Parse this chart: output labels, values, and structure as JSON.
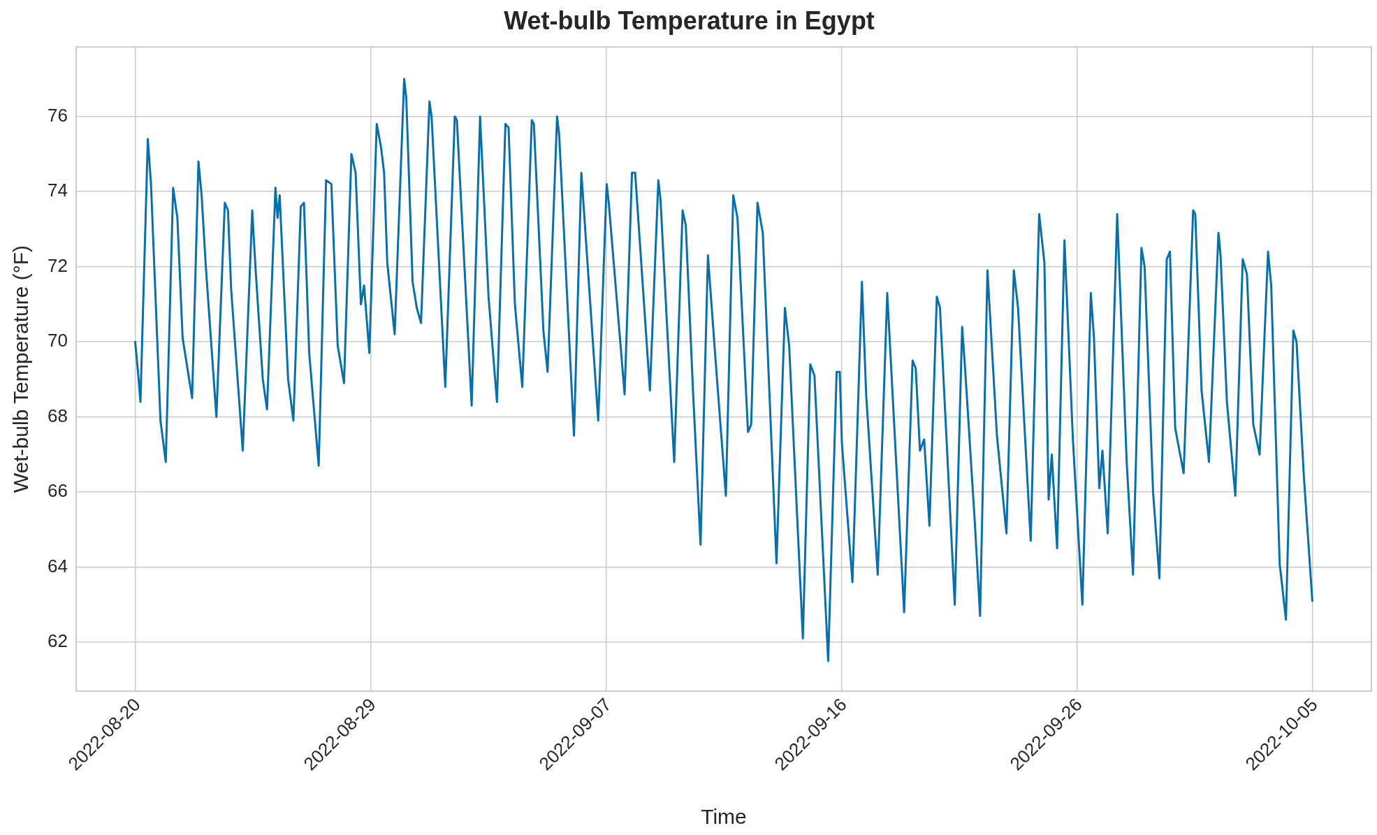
{
  "chart_data": {
    "type": "line",
    "title": "Wet-bulb Temperature in Egypt",
    "xlabel": "Time",
    "ylabel": "Wet-bulb Temperature (°F)",
    "color": "#0a6fa8",
    "grid": true,
    "marker": "none",
    "line_style": "solid",
    "xlim": [
      "2022-08-17T16:00",
      "2022-10-07T20:00"
    ],
    "xticks": [
      {
        "value": "2022-08-20T00:00",
        "label": "2022-08-20"
      },
      {
        "value": "2022-08-29T07:12",
        "label": "2022-08-29"
      },
      {
        "value": "2022-09-07T14:24",
        "label": "2022-09-07"
      },
      {
        "value": "2022-09-16T21:36",
        "label": "2022-09-16"
      },
      {
        "value": "2022-09-26T04:48",
        "label": "2022-09-26"
      },
      {
        "value": "2022-10-05T12:00",
        "label": "2022-10-05"
      }
    ],
    "ylim": [
      60.7,
      77.85
    ],
    "yticks": [
      62,
      64,
      66,
      68,
      70,
      72,
      74,
      76
    ],
    "x": [
      "2022-08-20T00:00",
      "2022-08-20T03:00",
      "2022-08-20T05:00",
      "2022-08-20T08:00",
      "2022-08-20T12:00",
      "2022-08-20T15:00",
      "2022-08-21T00:00",
      "2022-08-21T05:00",
      "2022-08-21T12:00",
      "2022-08-21T16:00",
      "2022-08-21T21:00",
      "2022-08-22T06:00",
      "2022-08-22T12:00",
      "2022-08-22T15:00",
      "2022-08-22T19:00",
      "2022-08-23T05:00",
      "2022-08-23T13:00",
      "2022-08-23T16:00",
      "2022-08-23T19:00",
      "2022-08-24T06:00",
      "2022-08-24T15:00",
      "2022-08-24T18:00",
      "2022-08-25T01:00",
      "2022-08-25T05:00",
      "2022-08-25T13:00",
      "2022-08-25T15:00",
      "2022-08-25T17:00",
      "2022-08-26T01:00",
      "2022-08-26T06:00",
      "2022-08-26T13:00",
      "2022-08-26T16:00",
      "2022-08-26T21:00",
      "2022-08-27T06:00",
      "2022-08-27T13:00",
      "2022-08-27T18:00",
      "2022-08-28T00:00",
      "2022-08-28T06:00",
      "2022-08-28T13:00",
      "2022-08-28T17:00",
      "2022-08-28T22:00",
      "2022-08-29T01:00",
      "2022-08-29T06:00",
      "2022-08-29T13:00",
      "2022-08-29T17:00",
      "2022-08-29T20:00",
      "2022-08-29T23:00",
      "2022-08-30T06:00",
      "2022-08-30T15:00",
      "2022-08-30T17:00",
      "2022-08-30T23:00",
      "2022-08-31T03:00",
      "2022-08-31T07:00",
      "2022-08-31T15:00",
      "2022-08-31T17:00",
      "2022-09-01T06:00",
      "2022-09-01T15:00",
      "2022-09-01T17:00",
      "2022-09-02T07:00",
      "2022-09-02T15:00",
      "2022-09-02T23:00",
      "2022-09-03T07:00",
      "2022-09-03T15:00",
      "2022-09-03T18:00",
      "2022-09-04T00:00",
      "2022-09-04T07:00",
      "2022-09-04T16:00",
      "2022-09-04T18:00",
      "2022-09-05T03:00",
      "2022-09-05T07:00",
      "2022-09-05T16:00",
      "2022-09-05T18:00",
      "2022-09-06T08:00",
      "2022-09-06T15:00",
      "2022-09-07T07:00",
      "2022-09-07T15:00",
      "2022-09-07T17:00",
      "2022-09-08T08:00",
      "2022-09-08T15:00",
      "2022-09-08T18:00",
      "2022-09-09T08:00",
      "2022-09-09T16:00",
      "2022-09-09T18:00",
      "2022-09-10T07:00",
      "2022-09-10T15:00",
      "2022-09-10T18:00",
      "2022-09-11T01:00",
      "2022-09-11T08:00",
      "2022-09-11T15:00",
      "2022-09-11T22:00",
      "2022-09-12T08:00",
      "2022-09-12T15:00",
      "2022-09-12T19:00",
      "2022-09-13T05:00",
      "2022-09-13T08:00",
      "2022-09-13T14:00",
      "2022-09-13T19:00",
      "2022-09-14T08:00",
      "2022-09-14T16:00",
      "2022-09-14T20:00",
      "2022-09-15T09:00",
      "2022-09-15T16:00",
      "2022-09-15T20:00",
      "2022-09-16T09:00",
      "2022-09-16T17:00",
      "2022-09-16T20:00",
      "2022-09-16T22:00",
      "2022-09-17T08:00",
      "2022-09-17T17:00",
      "2022-09-17T21:00",
      "2022-09-18T08:00",
      "2022-09-18T17:00",
      "2022-09-18T23:00",
      "2022-09-19T09:00",
      "2022-09-19T17:00",
      "2022-09-19T20:00",
      "2022-09-20T00:00",
      "2022-09-20T04:00",
      "2022-09-20T09:00",
      "2022-09-20T16:00",
      "2022-09-20T19:00",
      "2022-09-21T09:00",
      "2022-09-21T16:00",
      "2022-09-21T19:00",
      "2022-09-22T04:00",
      "2022-09-22T09:00",
      "2022-09-22T16:00",
      "2022-09-23T01:00",
      "2022-09-23T10:00",
      "2022-09-23T17:00",
      "2022-09-23T21:00",
      "2022-09-24T09:00",
      "2022-09-24T17:00",
      "2022-09-24T22:00",
      "2022-09-25T02:00",
      "2022-09-25T05:00",
      "2022-09-25T10:00",
      "2022-09-25T17:00",
      "2022-09-26T01:00",
      "2022-09-26T10:00",
      "2022-09-26T18:00",
      "2022-09-26T21:00",
      "2022-09-27T02:00",
      "2022-09-27T05:00",
      "2022-09-27T10:00",
      "2022-09-27T19:00",
      "2022-09-28T04:00",
      "2022-09-28T10:00",
      "2022-09-28T18:00",
      "2022-09-28T21:00",
      "2022-09-29T05:00",
      "2022-09-29T11:00",
      "2022-09-29T18:00",
      "2022-09-29T21:00",
      "2022-09-30T02:00",
      "2022-09-30T10:00",
      "2022-09-30T19:00",
      "2022-09-30T21:00",
      "2022-10-01T03:00",
      "2022-10-01T10:00",
      "2022-10-01T19:00",
      "2022-10-01T21:00",
      "2022-10-02T03:00",
      "2022-10-02T11:00",
      "2022-10-02T18:00",
      "2022-10-02T22:00",
      "2022-10-03T04:00",
      "2022-10-03T10:00",
      "2022-10-03T18:00",
      "2022-10-03T21:00",
      "2022-10-04T05:00",
      "2022-10-04T11:00",
      "2022-10-04T18:00",
      "2022-10-04T21:00",
      "2022-10-05T04:00",
      "2022-10-05T12:00"
    ],
    "values": [
      70.0,
      69.1,
      68.4,
      71.4,
      75.4,
      74.2,
      67.9,
      66.8,
      74.1,
      73.3,
      70.1,
      68.5,
      74.8,
      73.9,
      72.0,
      68.0,
      73.7,
      73.5,
      71.4,
      67.1,
      73.5,
      72.0,
      69.0,
      68.2,
      74.1,
      73.3,
      73.9,
      69.0,
      67.9,
      73.6,
      73.7,
      69.7,
      66.7,
      74.3,
      74.2,
      69.9,
      68.9,
      75.0,
      74.5,
      71.0,
      71.5,
      69.7,
      75.8,
      75.2,
      74.5,
      72.1,
      70.2,
      77.0,
      76.5,
      71.6,
      70.9,
      70.5,
      76.4,
      76.0,
      68.8,
      76.0,
      75.9,
      68.3,
      76.0,
      71.2,
      68.4,
      75.8,
      75.7,
      71.0,
      68.8,
      75.9,
      75.8,
      70.3,
      69.2,
      76.0,
      75.5,
      67.5,
      74.5,
      67.9,
      74.2,
      73.7,
      68.6,
      74.5,
      74.5,
      68.7,
      74.3,
      73.8,
      66.8,
      73.5,
      73.1,
      68.6,
      64.6,
      72.3,
      69.6,
      65.9,
      73.9,
      73.3,
      67.6,
      67.8,
      73.7,
      72.9,
      64.1,
      70.9,
      69.9,
      62.1,
      69.4,
      69.1,
      61.5,
      69.2,
      69.2,
      67.3,
      63.6,
      71.6,
      68.6,
      63.8,
      71.3,
      68.1,
      62.8,
      69.5,
      69.3,
      67.1,
      67.4,
      65.1,
      71.2,
      70.9,
      63.0,
      70.4,
      69.2,
      65.2,
      62.7,
      71.9,
      67.5,
      64.9,
      71.9,
      70.9,
      64.7,
      73.4,
      72.1,
      65.8,
      67.0,
      64.5,
      72.7,
      67.4,
      63.0,
      71.3,
      70.1,
      66.1,
      67.1,
      64.9,
      73.4,
      66.8,
      63.8,
      72.5,
      72.0,
      66.0,
      63.7,
      72.2,
      72.4,
      67.7,
      66.5,
      73.5,
      73.4,
      68.7,
      66.8,
      72.9,
      72.3,
      68.4,
      65.9,
      72.2,
      71.8,
      67.8,
      67.0,
      72.4,
      71.5,
      64.1,
      62.6,
      70.3,
      70.0,
      66.4,
      63.1
    ]
  }
}
